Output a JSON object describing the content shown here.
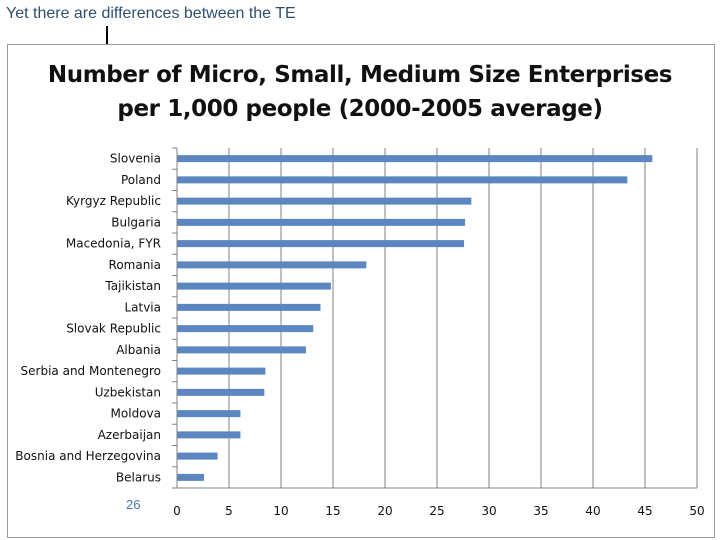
{
  "slide": {
    "title": "Yet there are differences between the TE",
    "page_number": "26"
  },
  "chart_data": {
    "type": "bar",
    "orientation": "horizontal",
    "title_lines": [
      "Number of Micro, Small, Medium Size Enterprises",
      "per 1,000 people (2000-2005 average)"
    ],
    "categories": [
      "Slovenia",
      "Poland",
      "Kyrgyz Republic",
      "Bulgaria",
      "Macedonia, FYR",
      "Romania",
      "Tajikistan",
      "Latvia",
      "Slovak Republic",
      "Albania",
      "Serbia and Montenegro",
      "Uzbekistan",
      "Moldova",
      "Azerbaijan",
      "Bosnia and Herzegovina",
      "Belarus"
    ],
    "values": [
      45.7,
      43.3,
      28.3,
      27.7,
      27.6,
      18.2,
      14.8,
      13.8,
      13.1,
      12.4,
      8.5,
      8.4,
      6.1,
      6.1,
      3.9,
      2.6
    ],
    "xlim": [
      0,
      50
    ],
    "xticks": [
      "0",
      "5",
      "10",
      "15",
      "20",
      "25",
      "30",
      "35",
      "40",
      "45",
      "50"
    ],
    "grid": true,
    "legend": "none",
    "colors": {
      "bar": "#5b86c0",
      "grid": "#808080",
      "text": "#111111"
    }
  }
}
